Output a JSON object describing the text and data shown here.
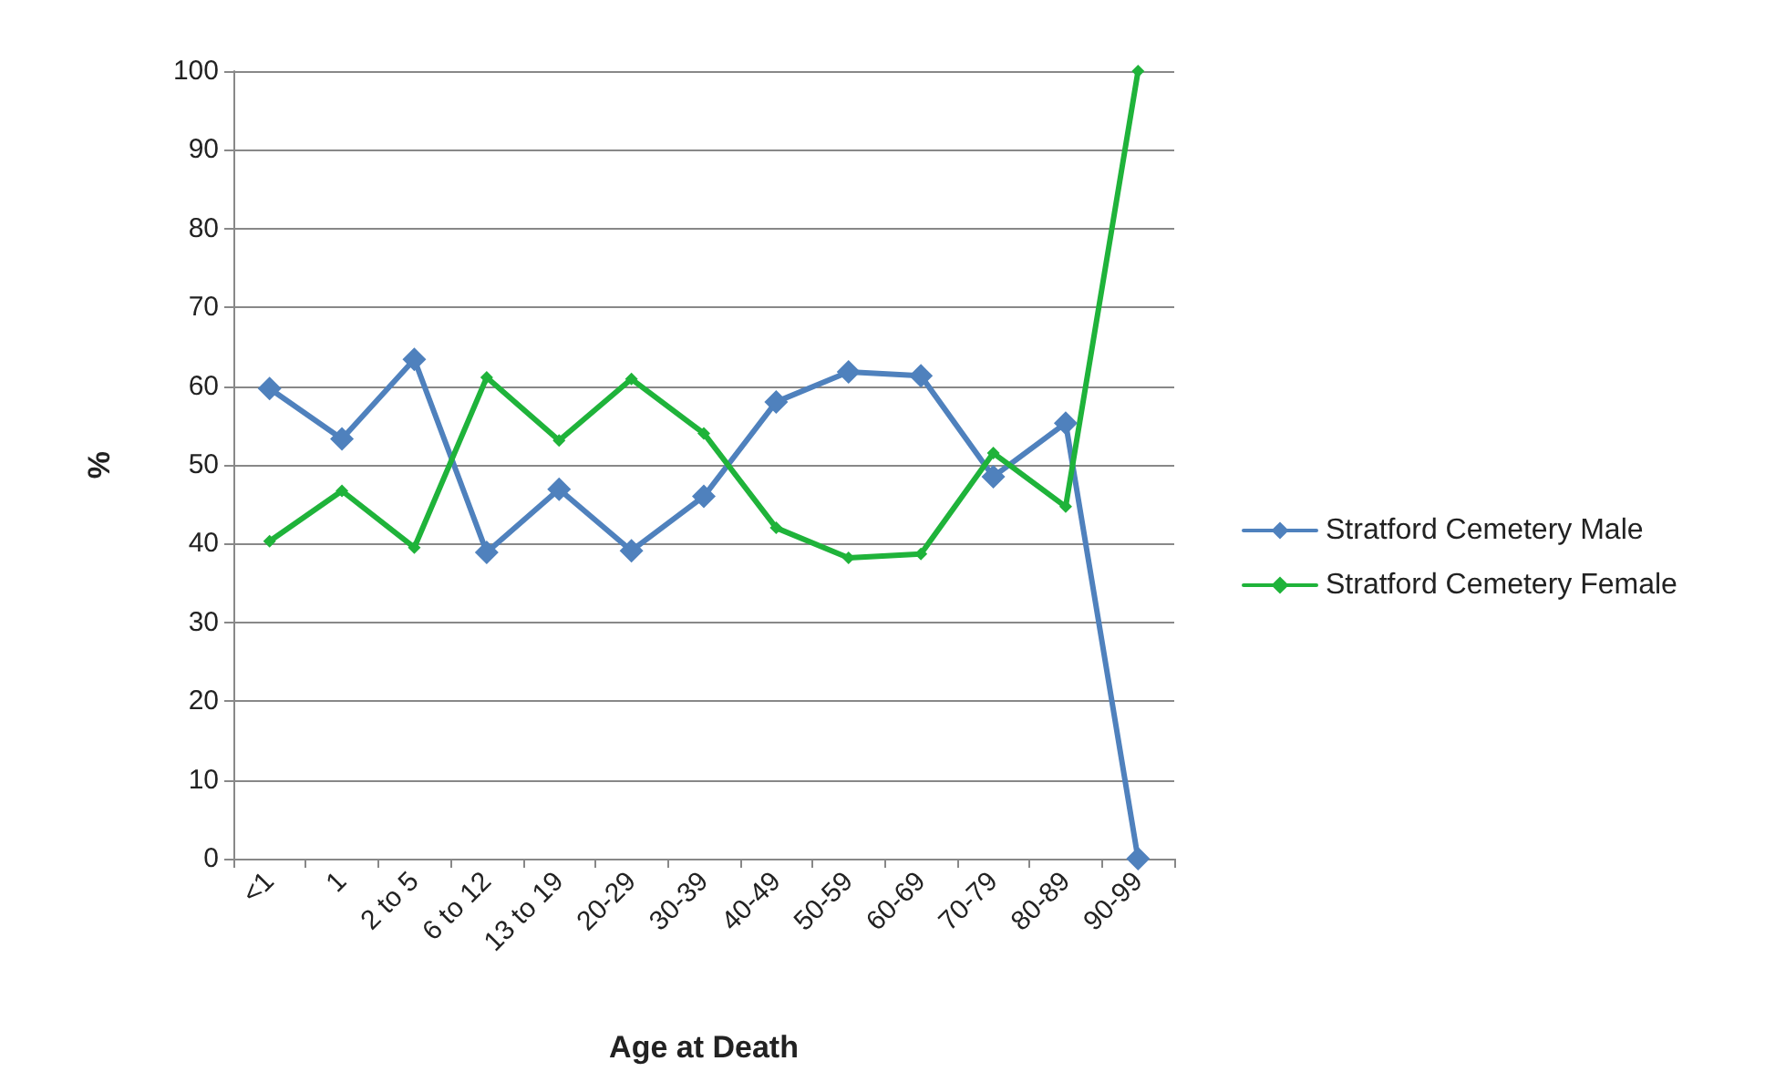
{
  "chart_data": {
    "type": "line",
    "xlabel": "Age at Death",
    "ylabel": "%",
    "categories": [
      "<1",
      "1",
      "2 to 5",
      "6 to 12",
      "13 to 19",
      "20-29",
      "30-39",
      "40-49",
      "50-59",
      "60-69",
      "70-79",
      "80-89",
      "90-99"
    ],
    "series": [
      {
        "name": "Stratford Cemetery Male",
        "color": "#4f81bd",
        "values": [
          59.7,
          53.3,
          63.4,
          38.9,
          46.9,
          39.1,
          46,
          58,
          61.8,
          61.3,
          48.5,
          55.3,
          0
        ]
      },
      {
        "name": "Stratford Cemetery Female",
        "color": "#1fb33a",
        "values": [
          40.3,
          46.7,
          39.5,
          61.1,
          53.1,
          60.9,
          54,
          42,
          38.2,
          38.7,
          51.5,
          44.7,
          100
        ]
      }
    ],
    "ylim": [
      0,
      100
    ],
    "yticks": [
      0,
      10,
      20,
      30,
      40,
      50,
      60,
      70,
      80,
      90,
      100
    ],
    "grid": "y",
    "legend": "right",
    "marker": "diamond",
    "line_style": "solid"
  }
}
